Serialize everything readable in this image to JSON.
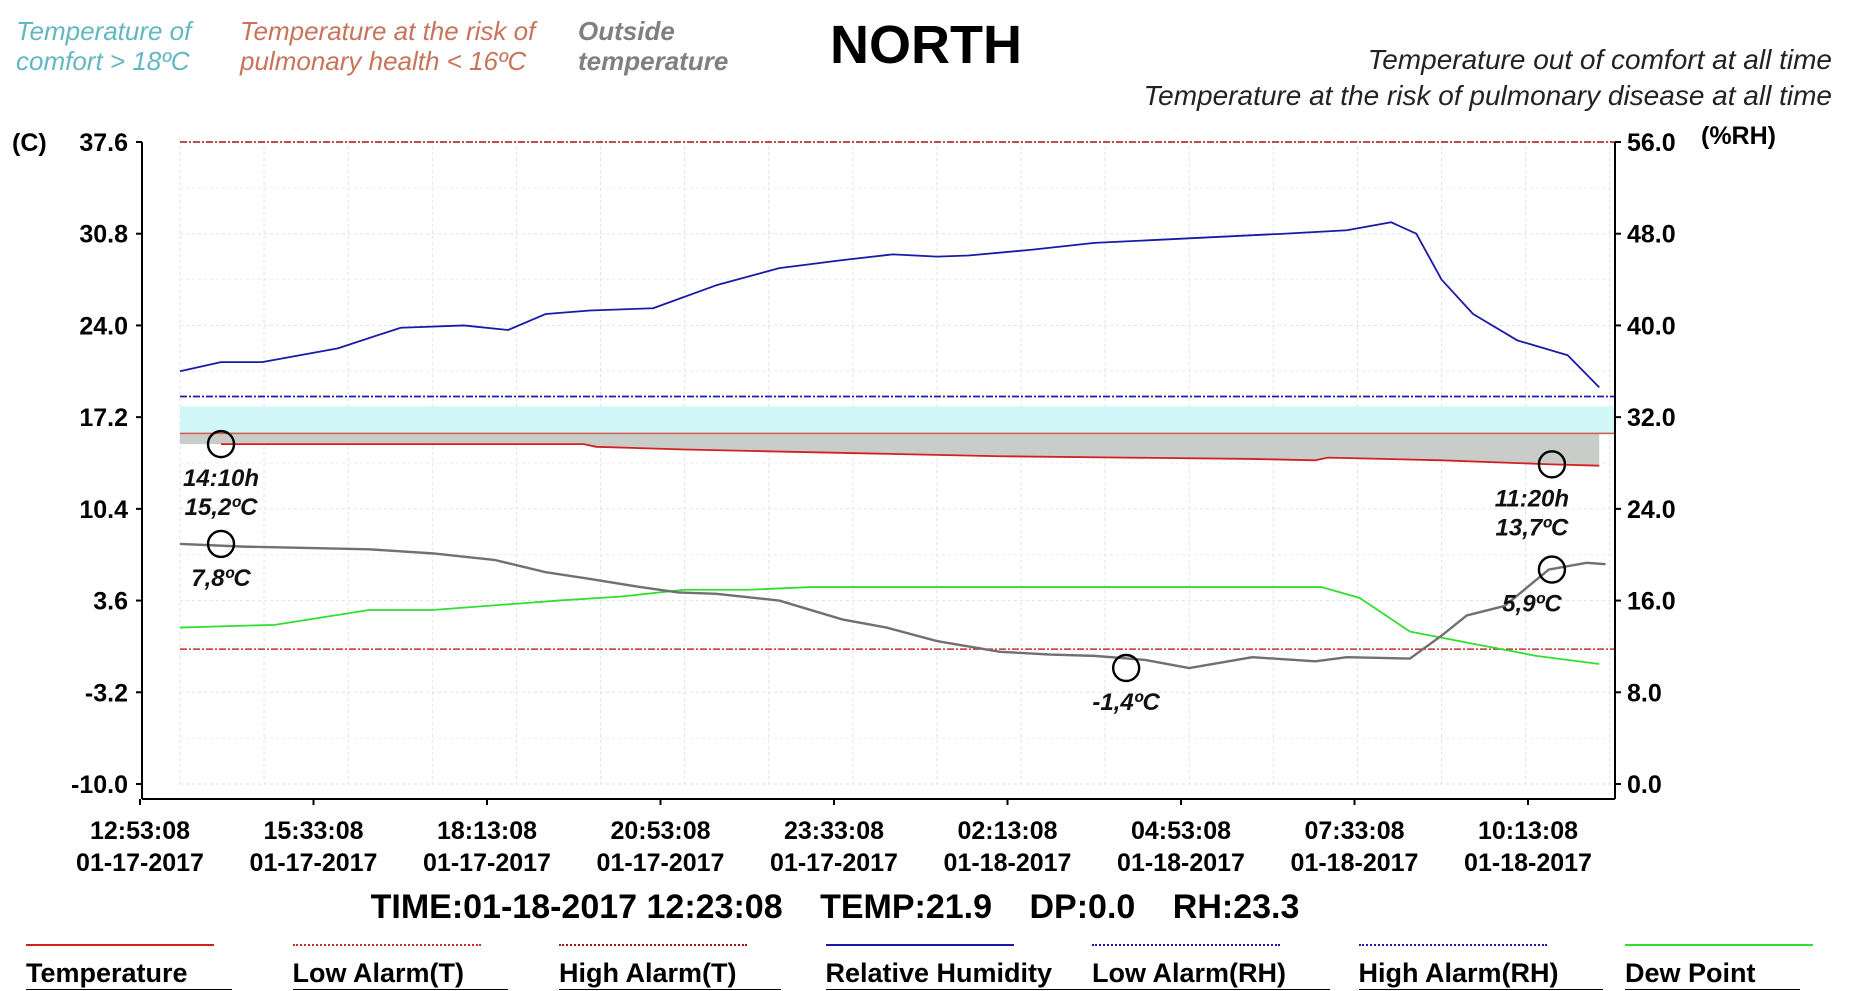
{
  "header": {
    "comfort_label": "Temperature of comfort > 18ºC",
    "risk_label": "Temperature at the risk of pulmonary health < 16ºC",
    "outside_label": "Outside temperature",
    "title": "NORTH",
    "note_line1": "Temperature out of comfort at all time",
    "note_line2": "Temperature at the risk of pulmonary disease at all time"
  },
  "colors": {
    "temperature": "#d42020",
    "low_alarm_t": "#c03030",
    "high_alarm_t": "#a01818",
    "humidity": "#1a1aa8",
    "low_alarm_rh": "#1a1aa8",
    "high_alarm_rh": "#1a1aa8",
    "dew_point": "#33dd33",
    "outside": "#707070",
    "comfort_band": "#d2f7f9",
    "risk_band": "#c8cdca"
  },
  "chart_data": {
    "type": "line",
    "title": "NORTH",
    "y_left_unit": "(C)",
    "y_right_unit": "(%RH)",
    "y_left_ticks": [
      "37.6",
      "30.8",
      "24.0",
      "17.2",
      "10.4",
      "3.6",
      "-3.2",
      "-10.0"
    ],
    "y_right_ticks": [
      "56.0",
      "48.0",
      "40.0",
      "32.0",
      "24.0",
      "16.0",
      "8.0",
      "0.0"
    ],
    "ylim_left": [
      -10.0,
      37.6
    ],
    "ylim_right": [
      0.0,
      56.0
    ],
    "x_ticks": [
      {
        "time": "12:53:08",
        "date": "01-17-2017"
      },
      {
        "time": "15:33:08",
        "date": "01-17-2017"
      },
      {
        "time": "18:13:08",
        "date": "01-17-2017"
      },
      {
        "time": "20:53:08",
        "date": "01-17-2017"
      },
      {
        "time": "23:33:08",
        "date": "01-17-2017"
      },
      {
        "time": "02:13:08",
        "date": "01-18-2017"
      },
      {
        "time": "04:53:08",
        "date": "01-18-2017"
      },
      {
        "time": "07:33:08",
        "date": "01-18-2017"
      },
      {
        "time": "10:13:08",
        "date": "01-18-2017"
      }
    ],
    "x_unit_note": "hours elapsed since 12:53:08 01-17-2017",
    "xlim": [
      0,
      22.75
    ],
    "grid": true,
    "bands": {
      "comfort": {
        "label": "Temperature of comfort > 18ºC",
        "from": 16.0,
        "to": 18.0
      },
      "risk": {
        "from_series": "Temperature",
        "to": 16.0
      }
    },
    "series": [
      {
        "name": "Temperature",
        "axis": "left",
        "color_key": "temperature",
        "x": [
          0.65,
          3,
          6.4,
          6.6,
          8,
          9,
          11,
          13,
          15,
          17,
          18,
          18.2,
          20,
          21.75,
          22.5
        ],
        "y": [
          15.2,
          15.2,
          15.2,
          15.0,
          14.8,
          14.7,
          14.5,
          14.3,
          14.2,
          14.1,
          14.0,
          14.2,
          14.0,
          13.7,
          13.6
        ]
      },
      {
        "name": "Relative Humidity",
        "axis": "right",
        "color_key": "humidity",
        "x": [
          0,
          0.65,
          1.3,
          2.5,
          3.5,
          4.5,
          5.2,
          5.8,
          6.5,
          7.5,
          8.5,
          9.5,
          10.5,
          11.3,
          12,
          12.5,
          13.5,
          14.5,
          16,
          17.5,
          18.5,
          19.2,
          19.6,
          20,
          20.5,
          21.2,
          22,
          22.5
        ],
        "y": [
          36.0,
          36.8,
          36.8,
          38.0,
          39.8,
          40.0,
          39.6,
          41.0,
          41.3,
          41.5,
          43.5,
          45.0,
          45.7,
          46.2,
          46.0,
          46.1,
          46.6,
          47.2,
          47.6,
          48.0,
          48.3,
          49.0,
          48.0,
          44.0,
          41.0,
          38.7,
          37.4,
          34.6
        ]
      },
      {
        "name": "Dew Point",
        "axis": "left",
        "color_key": "dew_point",
        "x": [
          0,
          1.5,
          3,
          4,
          6,
          7,
          8,
          9,
          10,
          12,
          14,
          16,
          17,
          18.1,
          18.7,
          19.5,
          20.5,
          21.5,
          22.5
        ],
        "y": [
          1.6,
          1.8,
          2.9,
          2.9,
          3.6,
          3.9,
          4.4,
          4.4,
          4.6,
          4.6,
          4.6,
          4.6,
          4.6,
          4.6,
          3.8,
          1.3,
          0.4,
          -0.5,
          -1.1
        ]
      },
      {
        "name": "Outside temperature",
        "axis": "left",
        "color_key": "outside",
        "x": [
          0,
          1,
          2,
          3,
          4,
          5,
          5.8,
          6.5,
          7.3,
          7.9,
          8.5,
          9.5,
          10.5,
          11.2,
          12,
          13,
          13.8,
          14.5,
          15.3,
          16,
          17,
          18,
          18.5,
          19.5,
          20,
          20.4,
          21,
          21.7,
          22.3,
          22.6
        ],
        "y": [
          7.8,
          7.6,
          7.5,
          7.4,
          7.1,
          6.6,
          5.7,
          5.2,
          4.6,
          4.2,
          4.1,
          3.6,
          2.2,
          1.6,
          0.6,
          -0.2,
          -0.4,
          -0.5,
          -0.8,
          -1.4,
          -0.6,
          -0.9,
          -0.6,
          -0.7,
          1.0,
          2.5,
          3.2,
          5.9,
          6.4,
          6.3
        ]
      }
    ],
    "alarm_lines": [
      {
        "name": "Low Alarm(T)",
        "axis": "left",
        "value": 0.0,
        "color_key": "low_alarm_t"
      },
      {
        "name": "High Alarm(T)",
        "axis": "left",
        "value": 37.6,
        "color_key": "high_alarm_t"
      },
      {
        "name": "Low Alarm(RH)",
        "axis": "right",
        "value": 33.8,
        "color_key": "low_alarm_rh"
      },
      {
        "name": "High Alarm(RH)",
        "axis": "right",
        "value": 33.8,
        "color_key": "high_alarm_rh"
      }
    ],
    "annotations": [
      {
        "name": "temperature-start",
        "axis": "left",
        "x": 0.65,
        "y": 15.2,
        "lines": [
          "14:10h",
          "15,2ºC"
        ],
        "label_side": "below"
      },
      {
        "name": "temperature-end",
        "axis": "left",
        "x": 21.75,
        "y": 13.7,
        "lines": [
          "11:20h",
          "13,7ºC"
        ],
        "label_side": "below-left"
      },
      {
        "name": "outside-start",
        "axis": "left",
        "x": 0.65,
        "y": 7.8,
        "lines": [
          "7,8ºC"
        ],
        "label_side": "below"
      },
      {
        "name": "outside-min",
        "axis": "left",
        "x": 15.0,
        "y": -1.4,
        "lines": [
          "-1,4ºC"
        ],
        "label_side": "below"
      },
      {
        "name": "outside-end",
        "axis": "left",
        "x": 21.75,
        "y": 5.9,
        "lines": [
          "5,9ºC"
        ],
        "label_side": "below-left"
      }
    ]
  },
  "status": {
    "time": "TIME:01-18-2017 12:23:08",
    "temp": "TEMP:21.9",
    "dp": "DP:0.0",
    "rh": "RH:23.3"
  },
  "legend": [
    {
      "label": "Temperature",
      "color_key": "temperature",
      "style": "solid"
    },
    {
      "label": "Low Alarm(T)",
      "color_key": "low_alarm_t",
      "style": "dashdot"
    },
    {
      "label": "High Alarm(T)",
      "color_key": "high_alarm_t",
      "style": "dashdot"
    },
    {
      "label": "Relative Humidity",
      "color_key": "humidity",
      "style": "solid"
    },
    {
      "label": "Low Alarm(RH)",
      "color_key": "low_alarm_rh",
      "style": "dashdot"
    },
    {
      "label": "High Alarm(RH)",
      "color_key": "high_alarm_rh",
      "style": "dashdot"
    },
    {
      "label": "Dew Point",
      "color_key": "dew_point",
      "style": "solid"
    }
  ]
}
